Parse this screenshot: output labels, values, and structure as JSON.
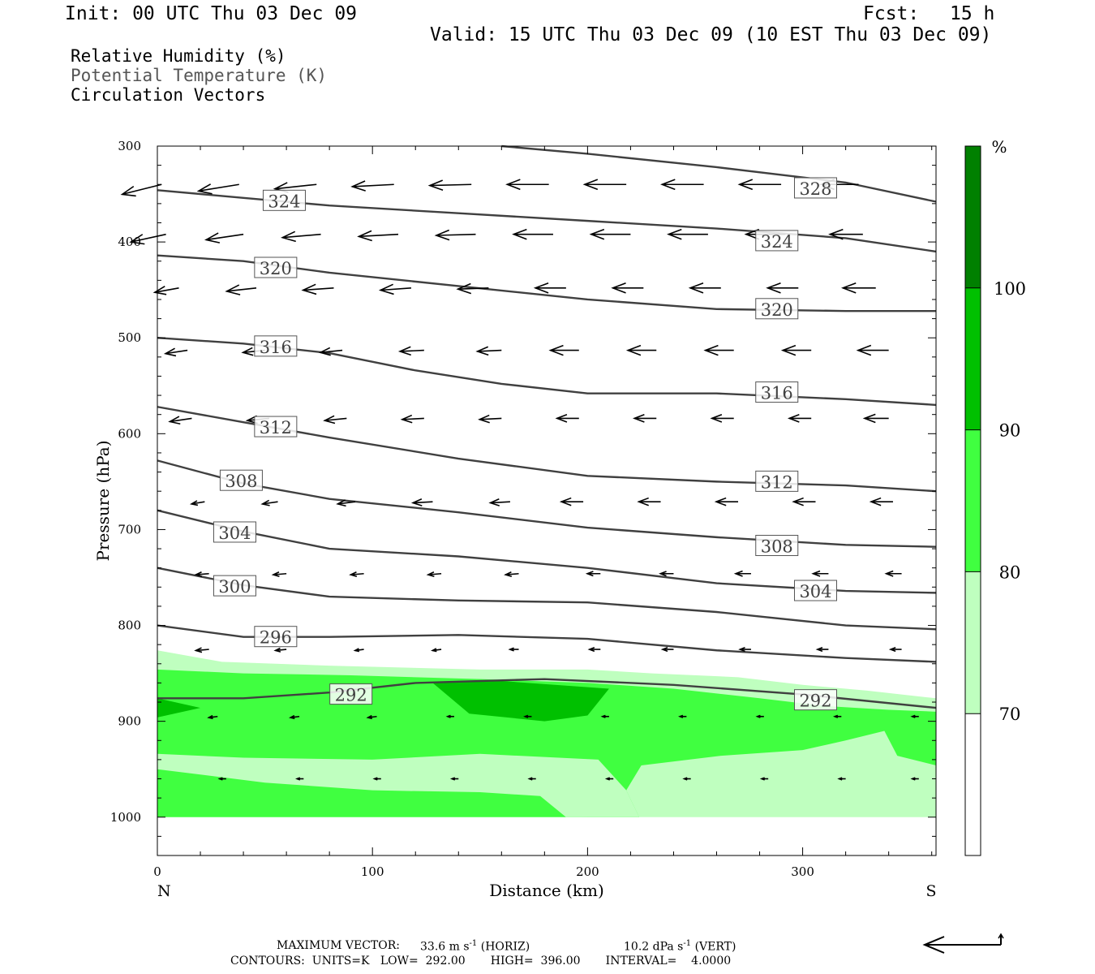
{
  "header": {
    "init": "Init: 00 UTC Thu 03 Dec 09",
    "fcst_label": "Fcst:",
    "fcst_value": "15 h",
    "valid": "Valid: 15 UTC Thu 03 Dec 09 (10 EST Thu 03 Dec 09)"
  },
  "fields": {
    "rh": "Relative Humidity (%)",
    "theta": "Potential Temperature (K)",
    "vectors": "Circulation Vectors"
  },
  "chart_data": {
    "type": "cross-section",
    "xlabel": "Distance (km)",
    "ylabel": "Pressure (hPa)",
    "xlim": [
      0,
      362
    ],
    "ylim": [
      300,
      1040
    ],
    "y_scale": "linear-inverted",
    "x_ticks": [
      0,
      100,
      200,
      300
    ],
    "y_ticks": [
      300,
      400,
      500,
      600,
      700,
      800,
      900,
      1000
    ],
    "x_end_labels": {
      "left": "N",
      "right": "S"
    },
    "colors": {
      "rh70": "#bfffbf",
      "rh80": "#40ff40",
      "rh90": "#00c000",
      "rh100": "#008000",
      "theta": "#404040",
      "vector": "#000000"
    },
    "colorbar": {
      "unit": "%",
      "levels": [
        70,
        80,
        90,
        100
      ],
      "colors": [
        "#ffffff",
        "#bfffbf",
        "#40ff40",
        "#00c000",
        "#008000"
      ]
    },
    "rh_regions": [
      {
        "level": 70,
        "points": [
          [
            0,
            826
          ],
          [
            30,
            838
          ],
          [
            80,
            842
          ],
          [
            150,
            846
          ],
          [
            200,
            846
          ],
          [
            230,
            850
          ],
          [
            270,
            854
          ],
          [
            300,
            862
          ],
          [
            330,
            868
          ],
          [
            362,
            876
          ],
          [
            362,
            1000
          ],
          [
            300,
            1000
          ],
          [
            250,
            1000
          ],
          [
            200,
            1000
          ],
          [
            150,
            996
          ],
          [
            100,
            986
          ],
          [
            50,
            970
          ],
          [
            0,
            950
          ]
        ]
      },
      {
        "level": 80,
        "points": [
          [
            0,
            846
          ],
          [
            40,
            850
          ],
          [
            90,
            852
          ],
          [
            150,
            856
          ],
          [
            200,
            860
          ],
          [
            240,
            866
          ],
          [
            280,
            876
          ],
          [
            310,
            884
          ],
          [
            340,
            888
          ],
          [
            362,
            890
          ],
          [
            362,
            946
          ],
          [
            344,
            936
          ],
          [
            338,
            910
          ],
          [
            320,
            920
          ],
          [
            300,
            930
          ],
          [
            262,
            936
          ],
          [
            225,
            946
          ],
          [
            218,
            972
          ],
          [
            224,
            1000
          ],
          [
            150,
            1000
          ],
          [
            100,
            1000
          ],
          [
            50,
            1000
          ],
          [
            0,
            1000
          ]
        ]
      },
      {
        "level": 70,
        "points": [
          [
            0,
            934
          ],
          [
            40,
            938
          ],
          [
            100,
            940
          ],
          [
            150,
            934
          ],
          [
            205,
            940
          ],
          [
            218,
            972
          ],
          [
            224,
            1000
          ],
          [
            190,
            1000
          ],
          [
            178,
            978
          ],
          [
            150,
            974
          ],
          [
            100,
            972
          ],
          [
            50,
            964
          ],
          [
            0,
            950
          ]
        ]
      },
      {
        "level": 90,
        "points": [
          [
            0,
            876
          ],
          [
            20,
            886
          ],
          [
            0,
            896
          ]
        ]
      },
      {
        "level": 90,
        "points": [
          [
            128,
            860
          ],
          [
            160,
            858
          ],
          [
            210,
            866
          ],
          [
            200,
            894
          ],
          [
            180,
            900
          ],
          [
            145,
            892
          ]
        ]
      },
      {
        "level": 70,
        "points": [
          [
            362,
            992
          ],
          [
            352,
            996
          ],
          [
            362,
            1000
          ]
        ]
      }
    ],
    "theta_contours": [
      {
        "value": 292,
        "points": [
          [
            0,
            876
          ],
          [
            40,
            876
          ],
          [
            80,
            870
          ],
          [
            120,
            860
          ],
          [
            180,
            856
          ],
          [
            240,
            862
          ],
          [
            300,
            872
          ],
          [
            362,
            886
          ]
        ]
      },
      {
        "value": 296,
        "points": [
          [
            0,
            800
          ],
          [
            40,
            812
          ],
          [
            80,
            812
          ],
          [
            140,
            810
          ],
          [
            200,
            814
          ],
          [
            260,
            826
          ],
          [
            320,
            834
          ],
          [
            362,
            838
          ]
        ]
      },
      {
        "value": 300,
        "points": [
          [
            0,
            740
          ],
          [
            40,
            758
          ],
          [
            80,
            770
          ],
          [
            140,
            774
          ],
          [
            200,
            776
          ],
          [
            260,
            786
          ],
          [
            320,
            800
          ],
          [
            362,
            804
          ]
        ]
      },
      {
        "value": 304,
        "points": [
          [
            0,
            680
          ],
          [
            40,
            702
          ],
          [
            80,
            720
          ],
          [
            140,
            728
          ],
          [
            200,
            740
          ],
          [
            260,
            756
          ],
          [
            320,
            764
          ],
          [
            362,
            766
          ]
        ]
      },
      {
        "value": 308,
        "points": [
          [
            0,
            628
          ],
          [
            40,
            652
          ],
          [
            80,
            668
          ],
          [
            140,
            682
          ],
          [
            200,
            698
          ],
          [
            260,
            708
          ],
          [
            320,
            716
          ],
          [
            362,
            718
          ]
        ]
      },
      {
        "value": 312,
        "points": [
          [
            0,
            572
          ],
          [
            40,
            588
          ],
          [
            80,
            604
          ],
          [
            140,
            626
          ],
          [
            200,
            644
          ],
          [
            260,
            650
          ],
          [
            320,
            654
          ],
          [
            362,
            660
          ]
        ]
      },
      {
        "value": 316,
        "points": [
          [
            0,
            500
          ],
          [
            40,
            506
          ],
          [
            80,
            516
          ],
          [
            120,
            534
          ],
          [
            160,
            548
          ],
          [
            200,
            558
          ],
          [
            260,
            558
          ],
          [
            320,
            564
          ],
          [
            362,
            570
          ]
        ]
      },
      {
        "value": 320,
        "points": [
          [
            0,
            414
          ],
          [
            40,
            420
          ],
          [
            80,
            432
          ],
          [
            140,
            446
          ],
          [
            200,
            460
          ],
          [
            260,
            470
          ],
          [
            320,
            472
          ],
          [
            362,
            472
          ]
        ]
      },
      {
        "value": 324,
        "points": [
          [
            0,
            346
          ],
          [
            40,
            354
          ],
          [
            80,
            362
          ],
          [
            140,
            370
          ],
          [
            200,
            378
          ],
          [
            260,
            386
          ],
          [
            320,
            396
          ],
          [
            362,
            410
          ]
        ]
      },
      {
        "value": 328,
        "points": [
          [
            160,
            300
          ],
          [
            200,
            308
          ],
          [
            260,
            322
          ],
          [
            320,
            338
          ],
          [
            362,
            358
          ]
        ]
      }
    ],
    "contour_labels": [
      {
        "value": "324",
        "x": 59,
        "p": 357
      },
      {
        "value": "320",
        "x": 55,
        "p": 427
      },
      {
        "value": "316",
        "x": 55,
        "p": 509
      },
      {
        "value": "312",
        "x": 55,
        "p": 593
      },
      {
        "value": "308",
        "x": 39,
        "p": 649
      },
      {
        "value": "304",
        "x": 36,
        "p": 703
      },
      {
        "value": "300",
        "x": 36,
        "p": 759
      },
      {
        "value": "296",
        "x": 55,
        "p": 812
      },
      {
        "value": "292",
        "x": 90,
        "p": 872
      },
      {
        "value": "328",
        "x": 306,
        "p": 344
      },
      {
        "value": "324",
        "x": 288,
        "p": 399
      },
      {
        "value": "320",
        "x": 288,
        "p": 470
      },
      {
        "value": "316",
        "x": 288,
        "p": 557
      },
      {
        "value": "312",
        "x": 288,
        "p": 650
      },
      {
        "value": "308",
        "x": 288,
        "p": 717
      },
      {
        "value": "304",
        "x": 306,
        "p": 764
      },
      {
        "value": "292",
        "x": 306,
        "p": 878
      }
    ],
    "vector_rows": [
      {
        "p": 340,
        "xs": [
          2,
          38,
          74,
          110,
          146,
          182,
          218,
          254,
          290,
          326
        ],
        "u": [
          -36,
          -37,
          -38,
          -38,
          -38,
          -38,
          -38,
          -38,
          -38,
          -34
        ],
        "w": [
          -9,
          -6,
          -4,
          -2,
          -1,
          0,
          0,
          0,
          0,
          0
        ]
      },
      {
        "p": 392,
        "xs": [
          4,
          40,
          76,
          112,
          148,
          184,
          220,
          256,
          292,
          328
        ],
        "u": [
          -32,
          -34,
          -35,
          -36,
          -36,
          -36,
          -36,
          -36,
          -36,
          -30
        ],
        "w": [
          -7,
          -5,
          -3,
          -2,
          -1,
          0,
          0,
          0,
          0,
          0
        ]
      },
      {
        "p": 448,
        "xs": [
          10,
          46,
          82,
          118,
          154,
          190,
          226,
          262,
          298,
          334
        ],
        "u": [
          -22,
          -27,
          -28,
          -28,
          -28,
          -28,
          -28,
          -28,
          -28,
          -30
        ],
        "w": [
          -4,
          -3,
          -2,
          -2,
          -1,
          0,
          0,
          0,
          0,
          0
        ]
      },
      {
        "p": 513,
        "xs": [
          14,
          50,
          86,
          124,
          160,
          196,
          232,
          268,
          304,
          340
        ],
        "u": [
          -20,
          -20,
          -20,
          -22,
          -22,
          -26,
          -26,
          -26,
          -26,
          -28
        ],
        "w": [
          -3,
          -2,
          -2,
          -1,
          -1,
          0,
          0,
          0,
          0,
          0
        ]
      },
      {
        "p": 584,
        "xs": [
          16,
          52,
          88,
          124,
          160,
          196,
          232,
          268,
          304,
          340
        ],
        "u": [
          -20,
          -20,
          -20,
          -20,
          -20,
          -20,
          -20,
          -20,
          -20,
          -22
        ],
        "w": [
          -3,
          -2,
          -2,
          -1,
          -1,
          0,
          0,
          0,
          0,
          0
        ]
      },
      {
        "p": 671,
        "xs": [
          22,
          56,
          92,
          128,
          164,
          198,
          234,
          270,
          306,
          342
        ],
        "u": [
          -12,
          -14,
          -16,
          -18,
          -18,
          -20,
          -20,
          -20,
          -20,
          -20
        ],
        "w": [
          -2,
          -2,
          -2,
          -1,
          -1,
          0,
          0,
          0,
          0,
          0
        ]
      },
      {
        "p": 746,
        "xs": [
          24,
          60,
          96,
          132,
          168,
          206,
          240,
          276,
          312,
          346
        ],
        "u": [
          -12,
          -12,
          -12,
          -12,
          -12,
          -12,
          -12,
          -14,
          -14,
          -14
        ],
        "w": [
          -1,
          -1,
          -1,
          -1,
          -1,
          0,
          0,
          0,
          0,
          0
        ]
      },
      {
        "p": 825,
        "xs": [
          24,
          60,
          96,
          132,
          168,
          206,
          240,
          276,
          312,
          346
        ],
        "u": [
          -12,
          -10,
          -8,
          -8,
          -8,
          -10,
          -10,
          -10,
          -10,
          -10
        ],
        "w": [
          -1,
          -1,
          -1,
          -1,
          0,
          0,
          0,
          0,
          0,
          0
        ]
      },
      {
        "p": 895,
        "xs": [
          28,
          66,
          102,
          138,
          174,
          210,
          246,
          282,
          318,
          354
        ],
        "u": [
          -8,
          -8,
          -8,
          -6,
          -6,
          -6,
          -6,
          -6,
          -6,
          -6
        ],
        "w": [
          -1,
          -1,
          -1,
          0,
          0,
          0,
          0,
          0,
          0,
          0
        ]
      },
      {
        "p": 960,
        "xs": [
          32,
          68,
          104,
          140,
          176,
          212,
          248,
          284,
          320,
          354
        ],
        "u": [
          -6,
          -6,
          -6,
          -6,
          -6,
          -6,
          -6,
          -6,
          -6,
          -6
        ],
        "w": [
          0,
          0,
          0,
          0,
          0,
          0,
          0,
          0,
          0,
          0
        ]
      }
    ]
  },
  "footer": {
    "max_vector_label": "MAXIMUM VECTOR:",
    "horiz_value": "33.6 m s",
    "horiz_unit": "(HORIZ)",
    "vert_value": "10.2 dPa s",
    "vert_unit": "(VERT)",
    "exponent": "-1",
    "contours": "CONTOURS:  UNITS=K   LOW=  292.00       HIGH=  396.00       INTERVAL=    4.0000"
  }
}
